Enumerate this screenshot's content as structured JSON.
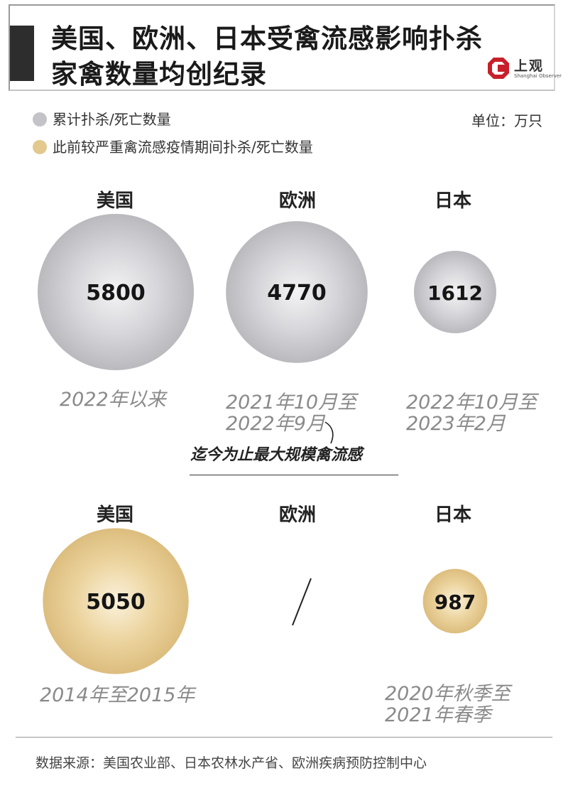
{
  "header": {
    "title_line1": "美国、欧洲、日本受禽流感影响扑杀",
    "title_line2": "家禽数量均创纪录",
    "logo_name": "上观",
    "logo_sub": "Shanghai Observer"
  },
  "legend": {
    "items": [
      {
        "label": "累计扑杀/死亡数量",
        "color": "#c4c4c8"
      },
      {
        "label": "此前较严重禽流感疫情期间扑杀/死亡数量",
        "color": "#e3c98e"
      }
    ],
    "unit": "单位：万只"
  },
  "chart_data": [
    {
      "type": "bubble",
      "series": [
        {
          "name": "累计扑杀/死亡数量",
          "color": "#c4c4c8"
        }
      ],
      "categories": [
        "美国",
        "欧洲",
        "日本"
      ],
      "values": [
        5800,
        4770,
        1612
      ],
      "periods": [
        [
          "2022年以来"
        ],
        [
          "2021年10月至",
          "2022年9月"
        ],
        [
          "2022年10月至",
          "2023年2月"
        ]
      ]
    },
    {
      "type": "bubble",
      "series": [
        {
          "name": "此前较严重禽流感疫情期间扑杀/死亡数量",
          "color": "#e3c98e"
        }
      ],
      "categories": [
        "美国",
        "欧洲",
        "日本"
      ],
      "values": [
        5050,
        null,
        987
      ],
      "value_labels": [
        "5050",
        "/",
        "987"
      ],
      "periods": [
        [
          "2014年至2015年"
        ],
        [],
        [
          "2020年秋季至",
          "2021年春季"
        ]
      ]
    }
  ],
  "annotation": "迄今为止最大规模禽流感",
  "source": "数据来源：美国农业部、日本农林水产省、欧洲疾病预防控制中心"
}
